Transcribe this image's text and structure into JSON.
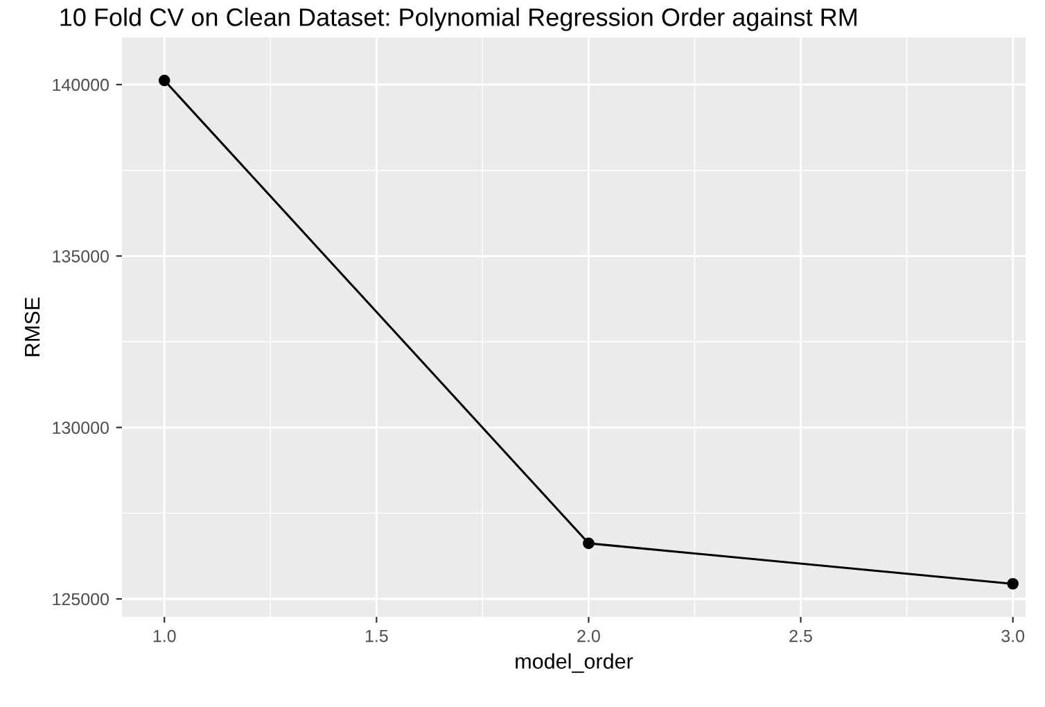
{
  "chart_data": {
    "type": "line",
    "title": "10 Fold CV on Clean Dataset: Polynomial Regression Order against RM",
    "xlabel": "model_order",
    "ylabel": "RMSE",
    "x": [
      1.0,
      2.0,
      3.0
    ],
    "series": [
      {
        "color": "#000000",
        "values": [
          140120,
          126620,
          125440
        ]
      }
    ],
    "xlim": [
      0.9,
      3.03
    ],
    "xticks": [
      {
        "value": 1.0,
        "label": "1.0"
      },
      {
        "value": 1.5,
        "label": "1.5"
      },
      {
        "value": 2.0,
        "label": "2.0"
      },
      {
        "value": 2.5,
        "label": "2.5"
      },
      {
        "value": 3.0,
        "label": "3.0"
      }
    ],
    "ylim": [
      124475,
      141375
    ],
    "yticks": [
      125000,
      130000,
      135000,
      140000
    ],
    "grid": true,
    "marker": "circle",
    "line_style": "solid"
  }
}
